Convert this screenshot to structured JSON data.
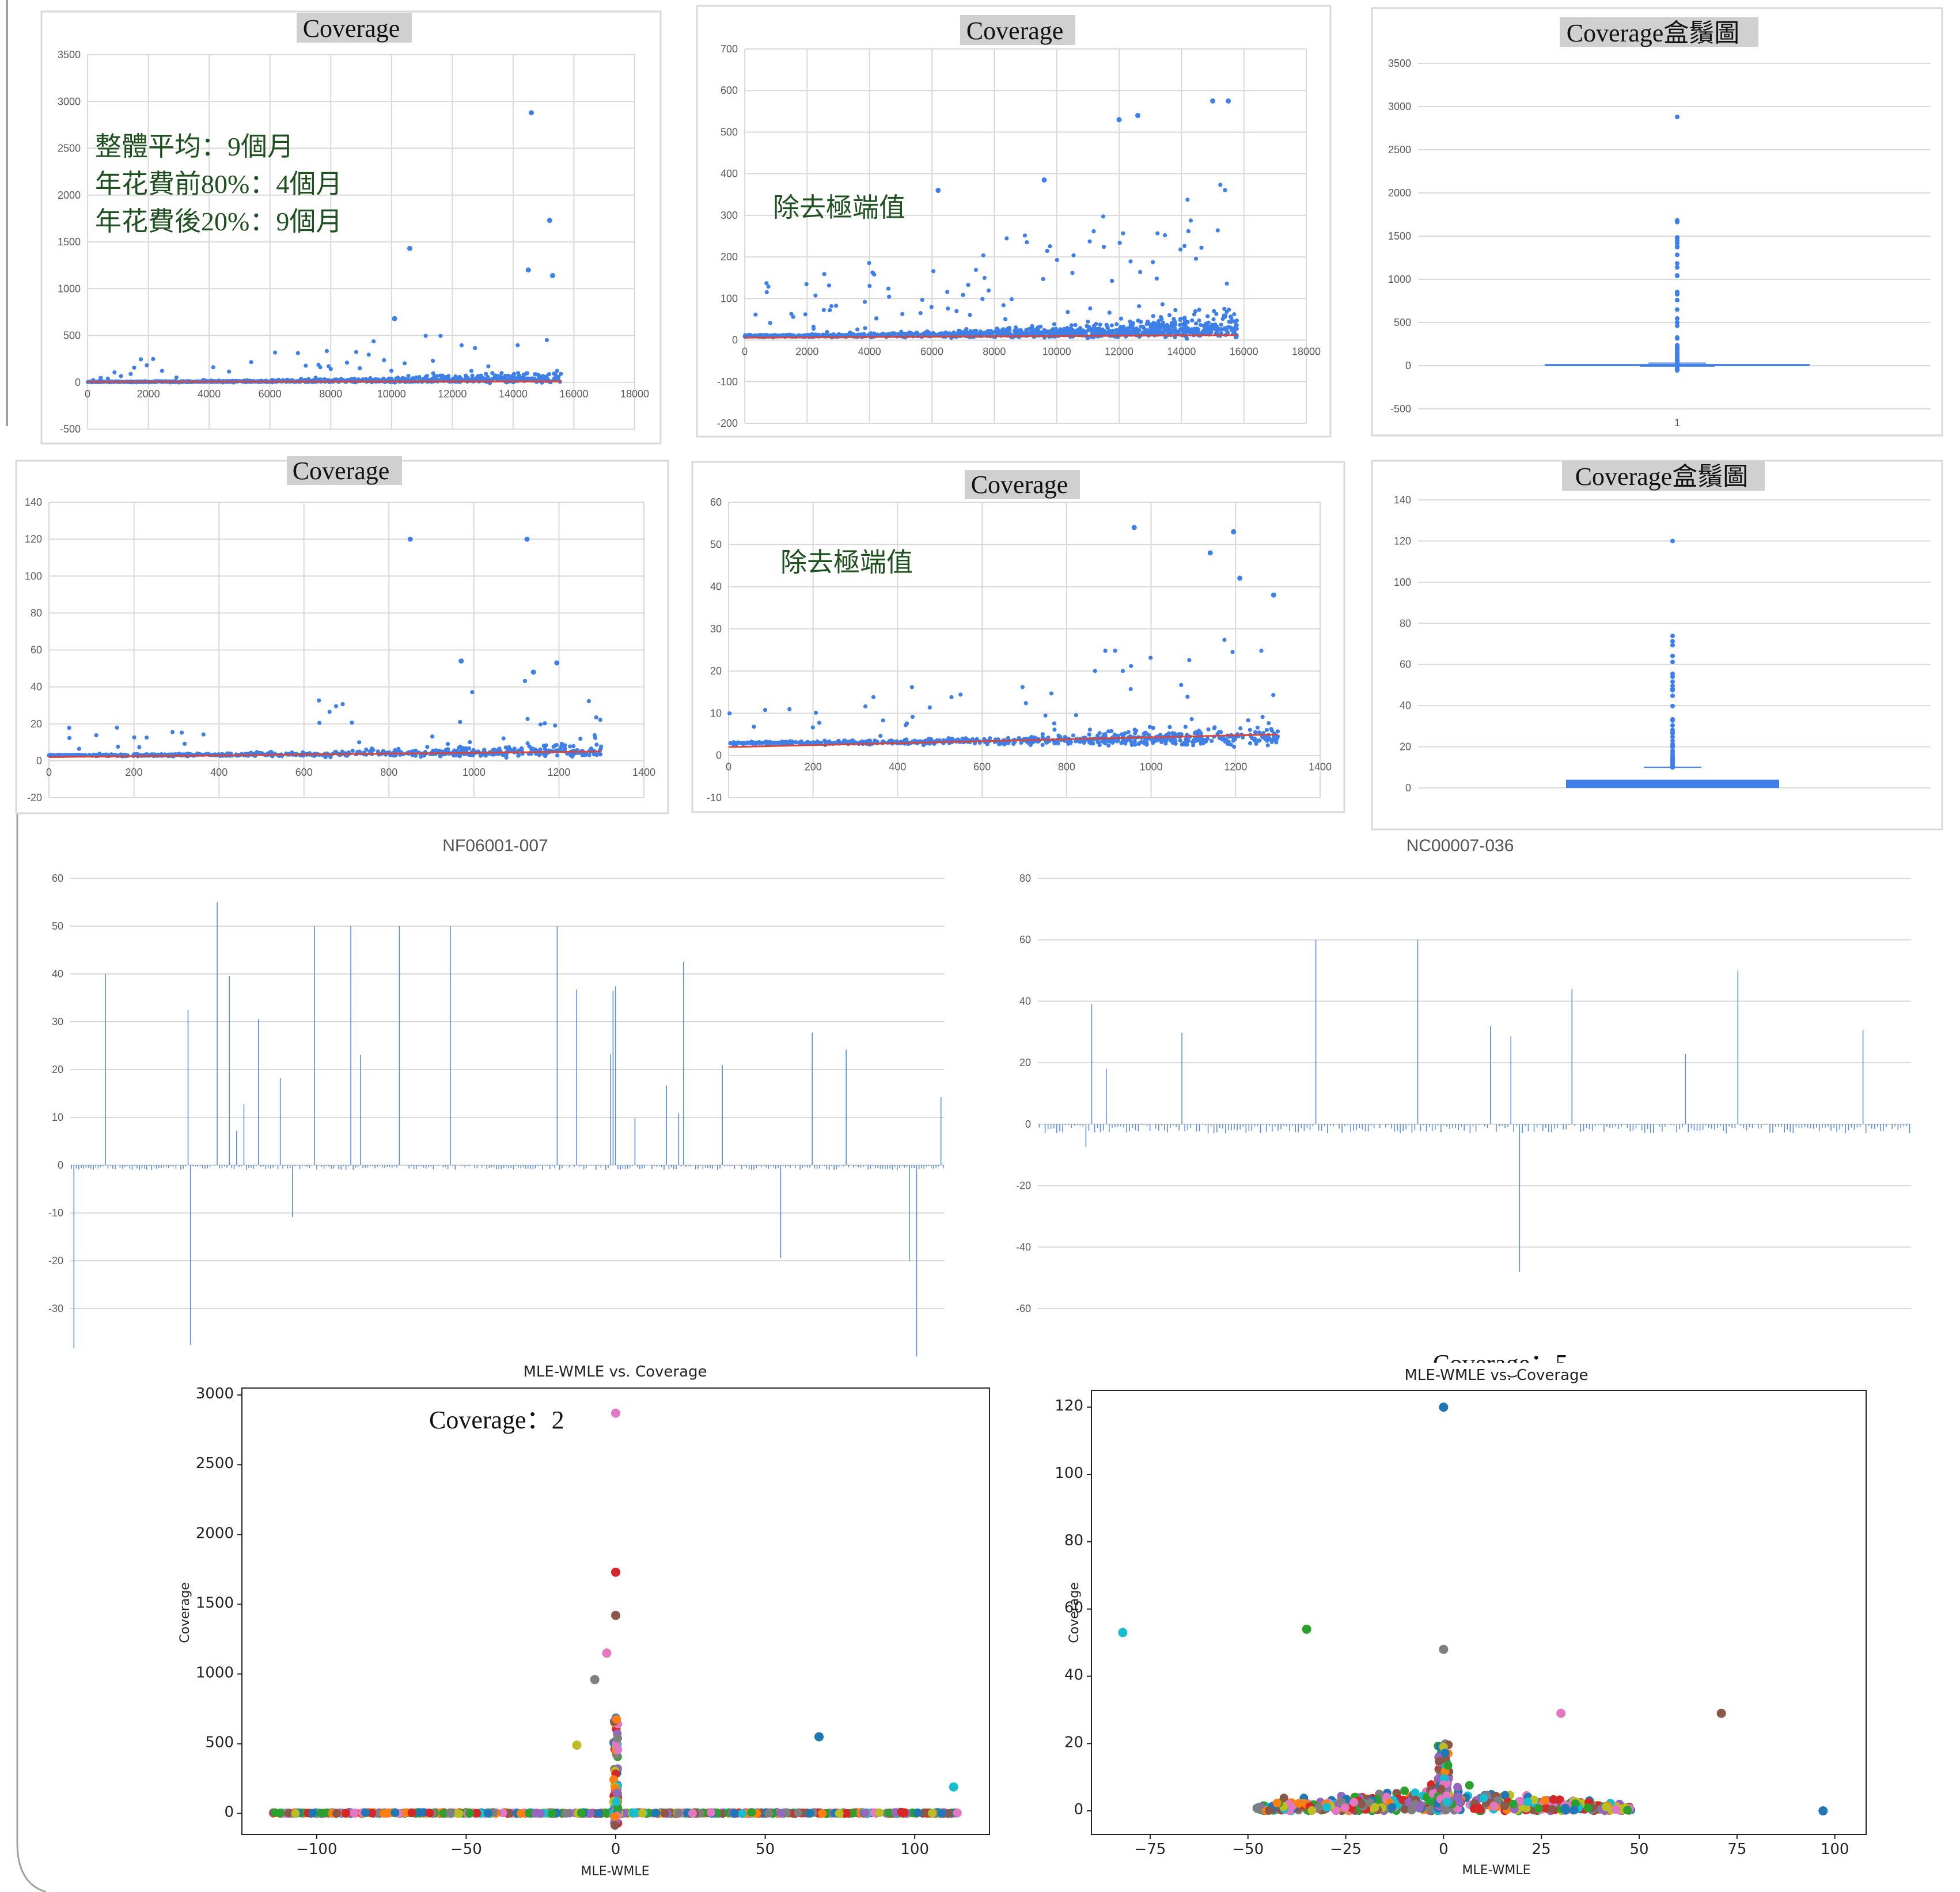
{
  "charts": [
    {
      "id": "all-scatter",
      "type": "scatter",
      "title": "Coverage",
      "x_ticks": [
        "0",
        "2000",
        "4000",
        "6000",
        "8000",
        "10000",
        "12000",
        "14000",
        "16000",
        "18000"
      ],
      "y_ticks": [
        "-500",
        "0",
        "500",
        "1000",
        "1500",
        "2000",
        "2500",
        "3000",
        "3500"
      ],
      "xlim": [
        0,
        18000
      ],
      "ylim": [
        -500,
        3500
      ],
      "annotation_lines": [
        "整體平均：9個月",
        "年花費前80%：4個月",
        "年花費後20%：9個月"
      ],
      "grid": true
    },
    {
      "id": "all-scatter-trimmed",
      "type": "scatter",
      "title": "Coverage",
      "x_ticks": [
        "0",
        "2000",
        "4000",
        "6000",
        "8000",
        "10000",
        "12000",
        "14000",
        "16000",
        "18000"
      ],
      "y_ticks": [
        "-200",
        "-100",
        "0",
        "100",
        "200",
        "300",
        "400",
        "500",
        "600",
        "700"
      ],
      "xlim": [
        0,
        18000
      ],
      "ylim": [
        -200,
        700
      ],
      "annotation": "除去極端值",
      "grid": true
    },
    {
      "id": "all-box",
      "type": "box",
      "title": "Coverage盒鬚圖",
      "x_ticks": [
        "1"
      ],
      "y_ticks": [
        "-500",
        "0",
        "500",
        "1000",
        "1500",
        "2000",
        "2500",
        "3000",
        "3500"
      ],
      "ylim": [
        -500,
        3500
      ],
      "grid": true
    },
    {
      "id": "sub-scatter",
      "type": "scatter",
      "title": "Coverage",
      "x_ticks": [
        "0",
        "200",
        "400",
        "600",
        "800",
        "1000",
        "1200",
        "1400"
      ],
      "y_ticks": [
        "-20",
        "0",
        "20",
        "40",
        "60",
        "80",
        "100",
        "120",
        "140"
      ],
      "xlim": [
        0,
        1400
      ],
      "ylim": [
        -20,
        140
      ],
      "grid": true
    },
    {
      "id": "sub-scatter-trimmed",
      "type": "scatter",
      "title": "Coverage",
      "x_ticks": [
        "0",
        "200",
        "400",
        "600",
        "800",
        "1000",
        "1200",
        "1400"
      ],
      "y_ticks": [
        "-10",
        "0",
        "10",
        "20",
        "30",
        "40",
        "50",
        "60"
      ],
      "xlim": [
        0,
        1400
      ],
      "ylim": [
        -10,
        60
      ],
      "annotation": "除去極端值",
      "grid": true
    },
    {
      "id": "sub-box",
      "type": "box",
      "title": "Coverage盒鬚圖",
      "y_ticks": [
        "0",
        "20",
        "40",
        "60",
        "80",
        "100",
        "120",
        "140"
      ],
      "ylim": [
        0,
        140
      ],
      "grid": true
    },
    {
      "id": "bar-nf",
      "type": "bar",
      "title": "NF06001-007",
      "y_ticks": [
        "-30",
        "-20",
        "-10",
        "0",
        "10",
        "20",
        "30",
        "40",
        "50",
        "60"
      ],
      "ylim": [
        -30,
        60
      ],
      "bar_count": 360,
      "grid": true
    },
    {
      "id": "bar-nc",
      "type": "bar",
      "title": "NC00007-036",
      "y_ticks": [
        "-60",
        "-40",
        "-20",
        "0",
        "20",
        "40",
        "60",
        "80"
      ],
      "ylim": [
        -60,
        80
      ],
      "bar_count": 300,
      "grid": true
    },
    {
      "id": "mle-all",
      "type": "scatter",
      "title": "MLE-WMLE vs. Coverage",
      "xlabel": "MLE-WMLE",
      "ylabel": "Coverage",
      "x_ticks": [
        "−100",
        "−50",
        "0",
        "50",
        "100"
      ],
      "y_ticks": [
        "0",
        "500",
        "1000",
        "1500",
        "2000",
        "2500",
        "3000"
      ],
      "xlim": [
        -125,
        125
      ],
      "ylim": [
        -150,
        3050
      ],
      "annotation": "Coverage：2",
      "grid": false
    },
    {
      "id": "mle-sub",
      "type": "scatter",
      "title": "MLE-WMLE vs. Coverage",
      "xlabel": "MLE-WMLE",
      "ylabel": "Coverage",
      "x_ticks": [
        "−75",
        "−50",
        "−25",
        "0",
        "25",
        "50",
        "75",
        "100"
      ],
      "y_ticks": [
        "0",
        "20",
        "40",
        "60",
        "80",
        "100",
        "120"
      ],
      "xlim": [
        -90,
        108
      ],
      "ylim": [
        -7,
        125
      ],
      "annotation": "Coverage：5",
      "grid": false
    }
  ],
  "chart_data": [
    {
      "type": "scatter",
      "title": "Coverage",
      "x_range": [
        0,
        15600
      ],
      "y_range": [
        -60,
        2880
      ],
      "trend": "flat near 0",
      "outliers": [
        {
          "x": 14600,
          "y": 2880
        },
        {
          "x": 15200,
          "y": 1730
        },
        {
          "x": 15300,
          "y": 1140
        },
        {
          "x": 10600,
          "y": 1430
        },
        {
          "x": 14500,
          "y": 1200
        },
        {
          "x": 10100,
          "y": 680
        }
      ]
    },
    {
      "type": "scatter",
      "title": "Coverage",
      "x_range": [
        0,
        15800
      ],
      "y_range": [
        -100,
        580
      ],
      "trend": "slightly rising near 10",
      "outliers": [
        {
          "x": 15000,
          "y": 575
        },
        {
          "x": 15500,
          "y": 575
        },
        {
          "x": 12600,
          "y": 540
        },
        {
          "x": 12000,
          "y": 530
        },
        {
          "x": 6200,
          "y": 360
        },
        {
          "x": 9600,
          "y": 385
        }
      ]
    },
    {
      "type": "box",
      "title": "Coverage盒鬚圖",
      "median": 9,
      "q1": 4,
      "q3": 15,
      "whisker_low": -60,
      "whisker_high": 30,
      "max": 2880
    },
    {
      "type": "scatter",
      "title": "Coverage",
      "x_range": [
        0,
        1300
      ],
      "y_range": [
        0,
        120
      ],
      "outliers": [
        {
          "x": 850,
          "y": 120
        },
        {
          "x": 1125,
          "y": 120
        },
        {
          "x": 970,
          "y": 54
        },
        {
          "x": 1195,
          "y": 53
        },
        {
          "x": 1140,
          "y": 48
        }
      ]
    },
    {
      "type": "scatter",
      "title": "Coverage",
      "x_range": [
        0,
        1300
      ],
      "y_range": [
        -1,
        55
      ],
      "trend": "rising from 2 to 5",
      "outliers": [
        {
          "x": 960,
          "y": 54
        },
        {
          "x": 1195,
          "y": 53
        },
        {
          "x": 1140,
          "y": 48
        },
        {
          "x": 1210,
          "y": 42
        },
        {
          "x": 1290,
          "y": 38
        }
      ]
    },
    {
      "type": "box",
      "title": "Coverage盒鬚圖",
      "median": 2,
      "q1": 0,
      "q3": 4,
      "whisker_high": 10,
      "max": 120
    },
    {
      "type": "bar",
      "title": "NF06001-007",
      "baseline_band": [
        -1,
        0
      ],
      "notable": [
        {
          "i": 60,
          "v": 55
        },
        {
          "i": 14,
          "v": 40
        },
        {
          "i": 100,
          "v": 50
        },
        {
          "i": 115,
          "v": 50
        },
        {
          "i": 135,
          "v": 50
        },
        {
          "i": 156,
          "v": 50
        },
        {
          "i": 200,
          "v": 50
        },
        {
          "i": 345,
          "v": -20
        }
      ]
    },
    {
      "type": "bar",
      "title": "NC00007-036",
      "baseline_band": [
        -3,
        0
      ],
      "notable": [
        {
          "i": 95,
          "v": 60
        },
        {
          "i": 130,
          "v": 60
        },
        {
          "i": 240,
          "v": 50
        },
        {
          "i": 165,
          "v": -48
        }
      ]
    },
    {
      "type": "scatter",
      "title": "MLE-WMLE vs. Coverage",
      "xlabel": "MLE-WMLE",
      "ylabel": "Coverage",
      "outliers": [
        {
          "x": 0,
          "y": 2870
        },
        {
          "x": 0,
          "y": 1730
        },
        {
          "x": 0,
          "y": 1420
        },
        {
          "x": -3,
          "y": 1150
        },
        {
          "x": -7,
          "y": 960
        },
        {
          "x": 68,
          "y": 550
        },
        {
          "x": -13,
          "y": 490
        },
        {
          "x": 113,
          "y": 190
        }
      ]
    },
    {
      "type": "scatter",
      "title": "MLE-WMLE vs. Coverage",
      "xlabel": "MLE-WMLE",
      "ylabel": "Coverage",
      "outliers": [
        {
          "x": 0,
          "y": 120
        },
        {
          "x": -82,
          "y": 53
        },
        {
          "x": -35,
          "y": 54
        },
        {
          "x": 0,
          "y": 48
        },
        {
          "x": 71,
          "y": 29
        },
        {
          "x": 30,
          "y": 29
        },
        {
          "x": 97,
          "y": 0
        }
      ]
    }
  ],
  "colors": {
    "point": "#3f7fe8",
    "trend": "#d9453a",
    "bar": "#5b8fd9",
    "grid": "#d9d9d9",
    "tab10": [
      "#1f77b4",
      "#ff7f0e",
      "#2ca02c",
      "#d62728",
      "#9467bd",
      "#8c564b",
      "#e377c2",
      "#7f7f7f",
      "#bcbd22",
      "#17becf"
    ]
  }
}
